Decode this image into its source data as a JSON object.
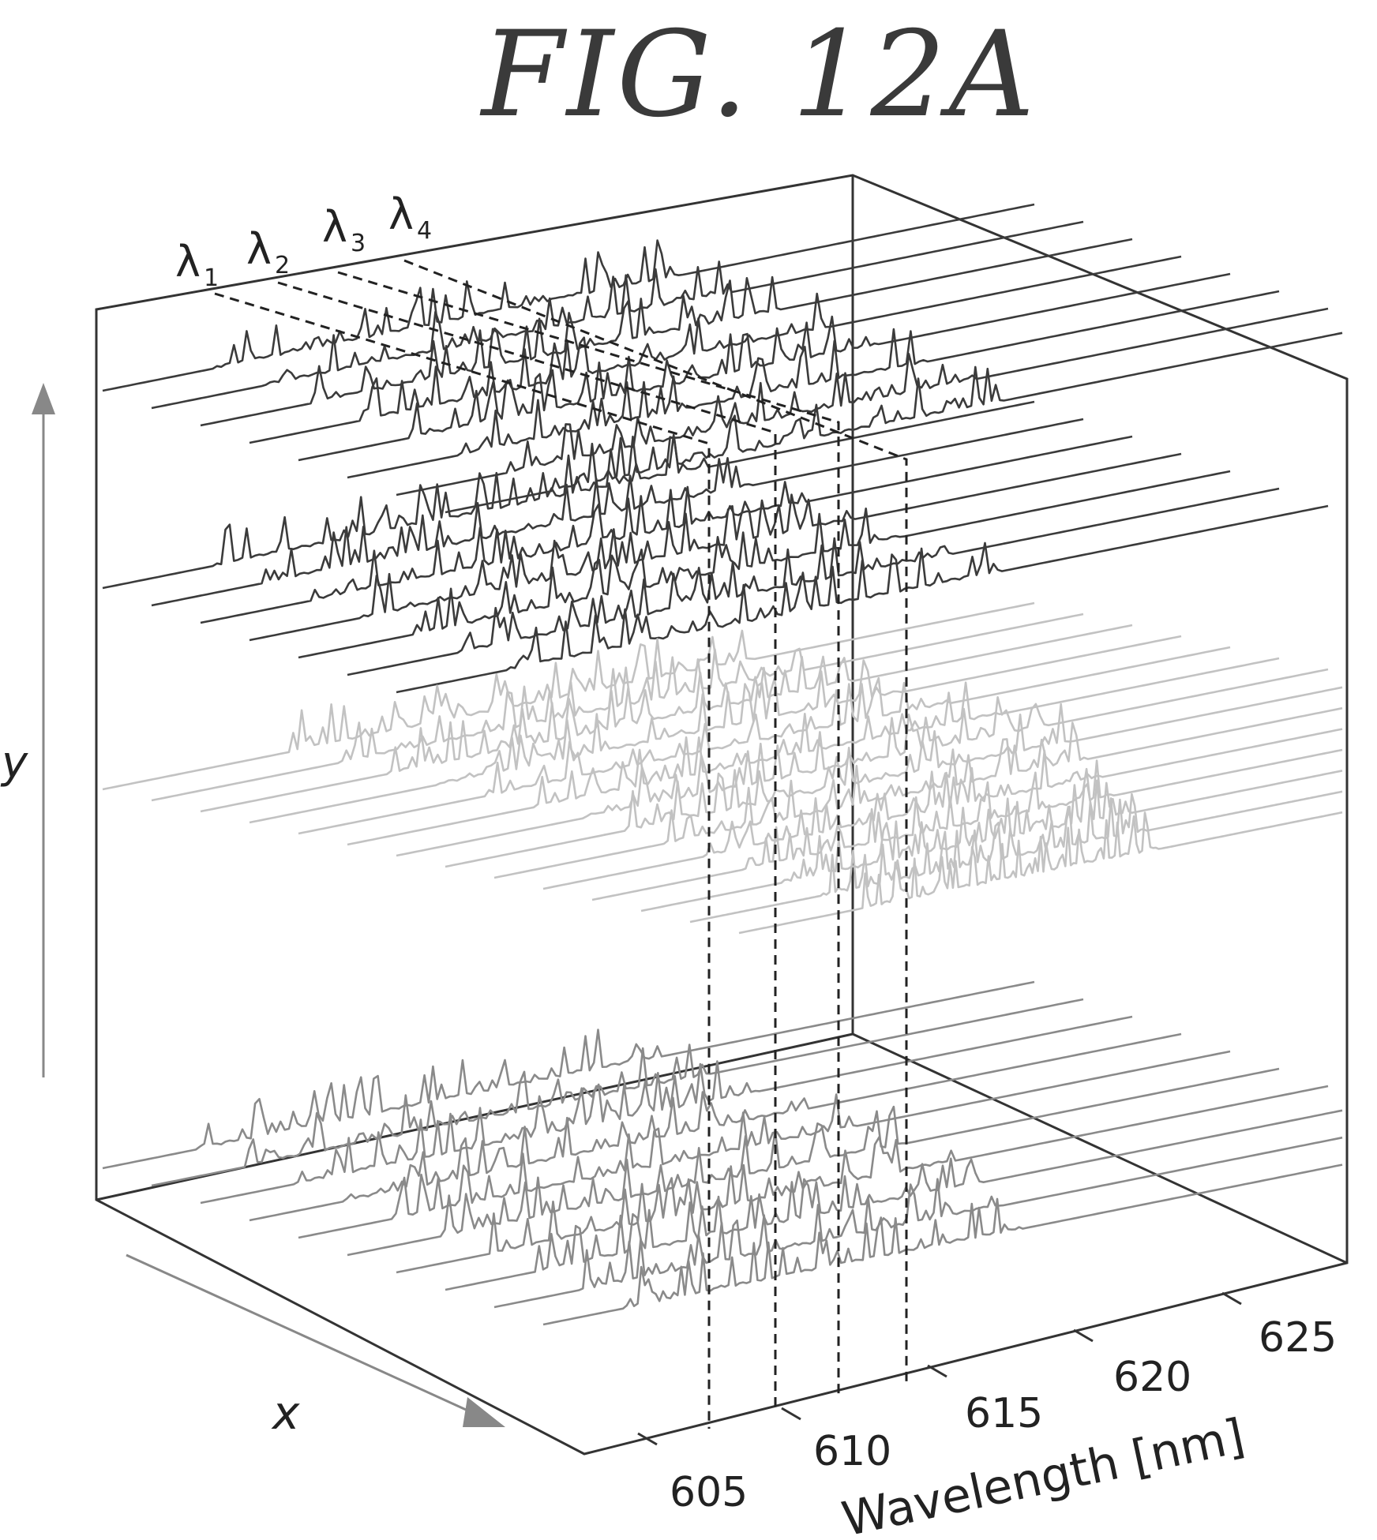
{
  "figure": {
    "title": "FIG. 12A"
  },
  "axes": {
    "x_label": "x",
    "y_label": "y",
    "wavelength_label": "Wavelength [nm]",
    "wavelength_ticks": [
      "605",
      "610",
      "615",
      "620",
      "625"
    ]
  },
  "markers": [
    {
      "symbol": "λ",
      "sub": "1"
    },
    {
      "symbol": "λ",
      "sub": "2"
    },
    {
      "symbol": "λ",
      "sub": "3"
    },
    {
      "symbol": "λ",
      "sub": "4"
    }
  ],
  "colors": {
    "dark_traces": "#3b3b3b",
    "mid_traces": "#8a8a8a",
    "light_traces": "#c2c2c2",
    "box": "#333333"
  }
}
